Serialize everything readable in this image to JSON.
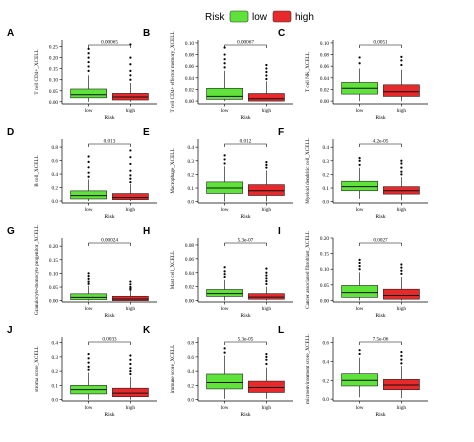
{
  "legend": {
    "title": "Risk",
    "items": [
      {
        "label": "low",
        "color": "#5fe33a"
      },
      {
        "label": "high",
        "color": "#e8292b"
      }
    ]
  },
  "chart_data": [
    {
      "type": "box",
      "panel": "A",
      "ylabel": "T cell CD4+_XCELL",
      "xlabel": "Risk",
      "categories": [
        "low",
        "high"
      ],
      "pvalue": "0.00065",
      "yticks": [
        "0.00",
        "0.05",
        "0.10",
        "0.15",
        "0.20",
        "0.25"
      ],
      "ylim": [
        -0.01,
        0.28
      ],
      "boxes": [
        {
          "min": 0.0,
          "q1": 0.018,
          "median": 0.032,
          "q3": 0.058,
          "max": 0.12,
          "outliers": [
            0.14,
            0.16,
            0.18,
            0.2,
            0.22,
            0.24
          ]
        },
        {
          "min": 0.0,
          "q1": 0.008,
          "median": 0.022,
          "q3": 0.038,
          "max": 0.085,
          "outliers": [
            0.1,
            0.12,
            0.14,
            0.17,
            0.2,
            0.26
          ]
        }
      ]
    },
    {
      "type": "box",
      "panel": "B",
      "ylabel": "T cell CD4+ effector memory_XCELL",
      "xlabel": "Risk",
      "categories": [
        "low",
        "high"
      ],
      "pvalue": "0.00067",
      "yticks": [
        "0.00",
        "0.02",
        "0.04",
        "0.06",
        "0.08",
        "0.10"
      ],
      "ylim": [
        -0.005,
        0.105
      ],
      "boxes": [
        {
          "min": 0.0,
          "q1": 0.003,
          "median": 0.008,
          "q3": 0.022,
          "max": 0.052,
          "outliers": [
            0.058,
            0.065,
            0.072,
            0.08,
            0.092
          ]
        },
        {
          "min": 0.0,
          "q1": 0.0,
          "median": 0.004,
          "q3": 0.013,
          "max": 0.034,
          "outliers": [
            0.038,
            0.044,
            0.05,
            0.056,
            0.062
          ]
        }
      ]
    },
    {
      "type": "box",
      "panel": "C",
      "ylabel": "T cell NK_XCELL",
      "xlabel": "Risk",
      "categories": [
        "low",
        "high"
      ],
      "pvalue": "0.0051",
      "yticks": [
        "0.00",
        "0.02",
        "0.04",
        "0.06",
        "0.08",
        "0.10"
      ],
      "ylim": [
        -0.005,
        0.105
      ],
      "boxes": [
        {
          "min": 0.0,
          "q1": 0.012,
          "median": 0.022,
          "q3": 0.032,
          "max": 0.056,
          "outliers": [
            0.065,
            0.075
          ]
        },
        {
          "min": 0.0,
          "q1": 0.008,
          "median": 0.016,
          "q3": 0.028,
          "max": 0.054,
          "outliers": [
            0.062,
            0.07,
            0.076
          ]
        }
      ]
    },
    {
      "type": "box",
      "panel": "D",
      "ylabel": "B cell_XCELL",
      "xlabel": "Risk",
      "categories": [
        "low",
        "high"
      ],
      "pvalue": "0.013",
      "yticks": [
        "0.0",
        "0.2",
        "0.4",
        "0.6",
        "0.8"
      ],
      "ylim": [
        -0.03,
        0.92
      ],
      "boxes": [
        {
          "min": 0.0,
          "q1": 0.03,
          "median": 0.08,
          "q3": 0.15,
          "max": 0.32,
          "outliers": [
            0.36,
            0.42,
            0.5,
            0.58,
            0.66
          ]
        },
        {
          "min": 0.0,
          "q1": 0.02,
          "median": 0.05,
          "q3": 0.11,
          "max": 0.25,
          "outliers": [
            0.28,
            0.33,
            0.38,
            0.45,
            0.55,
            0.65,
            0.75
          ]
        }
      ]
    },
    {
      "type": "box",
      "panel": "E",
      "ylabel": "Macrophage_XCELL",
      "xlabel": "Risk",
      "categories": [
        "low",
        "high"
      ],
      "pvalue": "0.012",
      "yticks": [
        "0.0",
        "0.1",
        "0.2",
        "0.3",
        "0.4"
      ],
      "ylim": [
        -0.01,
        0.46
      ],
      "boxes": [
        {
          "min": 0.0,
          "q1": 0.06,
          "median": 0.1,
          "q3": 0.145,
          "max": 0.26,
          "outliers": [
            0.28,
            0.31,
            0.34
          ]
        },
        {
          "min": 0.0,
          "q1": 0.045,
          "median": 0.08,
          "q3": 0.125,
          "max": 0.23,
          "outliers": [
            0.25,
            0.27,
            0.29
          ]
        }
      ]
    },
    {
      "type": "box",
      "panel": "F",
      "ylabel": "Myeloid dendritic cell_XCELL",
      "xlabel": "Risk",
      "categories": [
        "low",
        "high"
      ],
      "pvalue": "4.2e-05",
      "yticks": [
        "0.0",
        "0.1",
        "0.2",
        "0.3",
        "0.4"
      ],
      "ylim": [
        -0.01,
        0.46
      ],
      "boxes": [
        {
          "min": 0.02,
          "q1": 0.08,
          "median": 0.11,
          "q3": 0.15,
          "max": 0.25,
          "outliers": [
            0.27,
            0.3,
            0.32
          ]
        },
        {
          "min": 0.01,
          "q1": 0.055,
          "median": 0.08,
          "q3": 0.11,
          "max": 0.18,
          "outliers": [
            0.2,
            0.22,
            0.25,
            0.28,
            0.3
          ]
        }
      ]
    },
    {
      "type": "box",
      "panel": "G",
      "ylabel": "Granulocyte-monocyte progenitor_XCELL",
      "xlabel": "Risk",
      "categories": [
        "low",
        "high"
      ],
      "pvalue": "0.00024",
      "yticks": [
        "0.00",
        "0.05",
        "0.10",
        "0.15",
        "0.20"
      ],
      "ylim": [
        -0.005,
        0.23
      ],
      "boxes": [
        {
          "min": 0.0,
          "q1": 0.004,
          "median": 0.012,
          "q3": 0.025,
          "max": 0.055,
          "outliers": [
            0.062,
            0.07,
            0.08,
            0.09,
            0.1
          ]
        },
        {
          "min": 0.0,
          "q1": 0.0,
          "median": 0.006,
          "q3": 0.016,
          "max": 0.036,
          "outliers": [
            0.04,
            0.045,
            0.05,
            0.06,
            0.07
          ]
        }
      ]
    },
    {
      "type": "box",
      "panel": "H",
      "ylabel": "Mast cell_XCELL",
      "xlabel": "Risk",
      "categories": [
        "low",
        "high"
      ],
      "pvalue": "5.3e-07",
      "yticks": [
        "0.00",
        "0.02",
        "0.04",
        "0.06",
        "0.08"
      ],
      "ylim": [
        -0.002,
        0.09
      ],
      "boxes": [
        {
          "min": 0.0,
          "q1": 0.006,
          "median": 0.01,
          "q3": 0.016,
          "max": 0.03,
          "outliers": [
            0.034,
            0.038,
            0.042,
            0.048
          ]
        },
        {
          "min": 0.0,
          "q1": 0.002,
          "median": 0.005,
          "q3": 0.01,
          "max": 0.02,
          "outliers": [
            0.024,
            0.028,
            0.032,
            0.036,
            0.04,
            0.046
          ]
        }
      ]
    },
    {
      "type": "box",
      "panel": "I",
      "ylabel": "Cancer associated fibroblast_XCELL",
      "xlabel": "Risk",
      "categories": [
        "low",
        "high"
      ],
      "pvalue": "0.0027",
      "yticks": [
        "0.00",
        "0.05",
        "0.10",
        "0.15",
        "0.20"
      ],
      "ylim": [
        -0.005,
        0.2
      ],
      "boxes": [
        {
          "min": 0.0,
          "q1": 0.01,
          "median": 0.025,
          "q3": 0.048,
          "max": 0.09,
          "outliers": [
            0.1,
            0.11,
            0.12,
            0.13
          ]
        },
        {
          "min": 0.0,
          "q1": 0.004,
          "median": 0.016,
          "q3": 0.036,
          "max": 0.075,
          "outliers": [
            0.085,
            0.095,
            0.105,
            0.115
          ]
        }
      ]
    },
    {
      "type": "box",
      "panel": "J",
      "ylabel": "stroma score_XCELL",
      "xlabel": "Risk",
      "categories": [
        "low",
        "high"
      ],
      "pvalue": "0.0033",
      "yticks": [
        "0.0",
        "0.1",
        "0.2",
        "0.3",
        "0.4"
      ],
      "ylim": [
        -0.01,
        0.44
      ],
      "boxes": [
        {
          "min": 0.0,
          "q1": 0.04,
          "median": 0.07,
          "q3": 0.1,
          "max": 0.19,
          "outliers": [
            0.21,
            0.23,
            0.26,
            0.29,
            0.32
          ]
        },
        {
          "min": 0.0,
          "q1": 0.02,
          "median": 0.045,
          "q3": 0.08,
          "max": 0.16,
          "outliers": [
            0.18,
            0.2,
            0.22,
            0.25,
            0.28,
            0.31
          ]
        }
      ]
    },
    {
      "type": "box",
      "panel": "K",
      "ylabel": "immune score_XCELL",
      "xlabel": "Risk",
      "categories": [
        "low",
        "high"
      ],
      "pvalue": "5.3e-05",
      "yticks": [
        "0.0",
        "0.2",
        "0.4",
        "0.6",
        "0.8"
      ],
      "ylim": [
        -0.02,
        0.88
      ],
      "boxes": [
        {
          "min": 0.01,
          "q1": 0.15,
          "median": 0.24,
          "q3": 0.36,
          "max": 0.62,
          "outliers": [
            0.66,
            0.72
          ]
        },
        {
          "min": 0.01,
          "q1": 0.1,
          "median": 0.17,
          "q3": 0.26,
          "max": 0.45,
          "outliers": [
            0.5,
            0.56,
            0.6,
            0.64
          ]
        }
      ]
    },
    {
      "type": "box",
      "panel": "L",
      "ylabel": "microenvironment score_XCELL",
      "xlabel": "Risk",
      "categories": [
        "low",
        "high"
      ],
      "pvalue": "7.5e-06",
      "yticks": [
        "0.0",
        "0.2",
        "0.4",
        "0.6"
      ],
      "ylim": [
        -0.02,
        0.66
      ],
      "boxes": [
        {
          "min": 0.02,
          "q1": 0.14,
          "median": 0.2,
          "q3": 0.27,
          "max": 0.44,
          "outliers": [
            0.48,
            0.52
          ]
        },
        {
          "min": 0.01,
          "q1": 0.1,
          "median": 0.15,
          "q3": 0.21,
          "max": 0.35,
          "outliers": [
            0.38,
            0.42,
            0.46,
            0.5
          ]
        }
      ]
    }
  ]
}
